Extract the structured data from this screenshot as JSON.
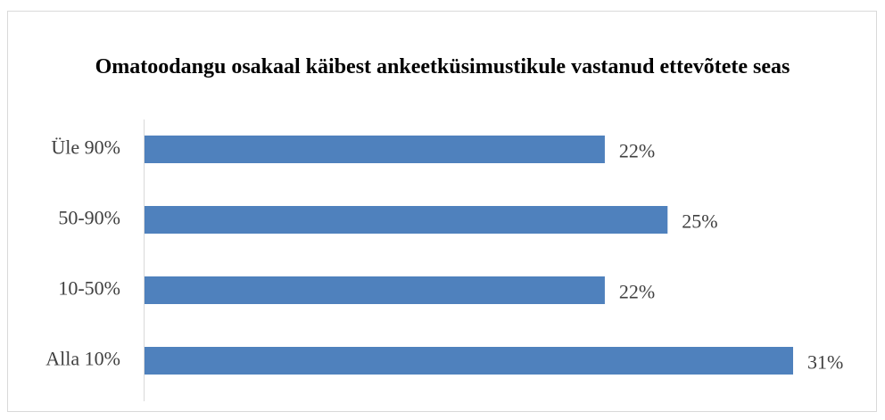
{
  "chart_data": {
    "type": "bar",
    "orientation": "horizontal",
    "title": "Omatoodangu osakaal käibest ankeetküsimustikule vastanud ettevõtete seas",
    "categories": [
      "Üle 90%",
      "50-90%",
      "10-50%",
      "Alla 10%"
    ],
    "values": [
      22,
      25,
      22,
      31
    ],
    "value_labels": [
      "22%",
      "25%",
      "22%",
      "31%"
    ],
    "color": "#4f81bd"
  }
}
